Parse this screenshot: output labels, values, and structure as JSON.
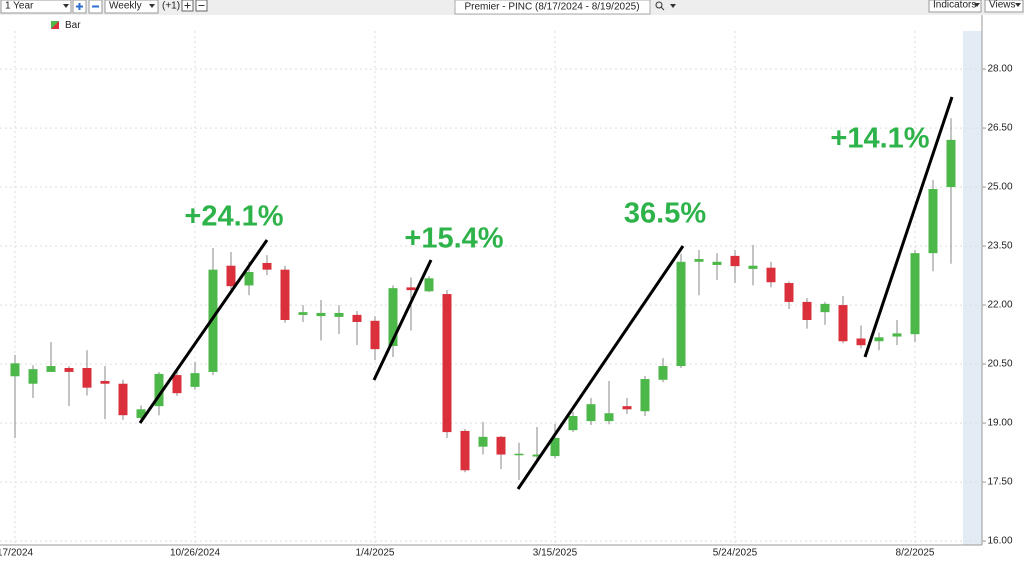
{
  "toolbar": {
    "range": "1 Year",
    "interval": "Weekly",
    "offset": "(+1)",
    "indicators": "Indicators",
    "views": "Views"
  },
  "chart_data": {
    "type": "candlestick",
    "title": "Premier - PINC (8/17/2024 - 8/19/2025)",
    "categories": [
      "17/2024",
      null,
      null,
      null,
      null,
      null,
      null,
      null,
      null,
      null,
      "10/26/2024",
      null,
      null,
      null,
      null,
      null,
      null,
      null,
      null,
      null,
      "1/4/2025",
      null,
      null,
      null,
      null,
      null,
      null,
      null,
      null,
      null,
      "3/15/2025",
      null,
      null,
      null,
      null,
      null,
      null,
      null,
      null,
      null,
      "5/24/2025",
      null,
      null,
      null,
      null,
      null,
      null,
      null,
      null,
      null,
      "8/2/2025",
      null,
      null
    ],
    "series": [
      {
        "name": "Bar",
        "up_color": "#4cb849",
        "down_color": "#d9303b",
        "open": [
          20.19,
          20.0,
          20.3,
          20.4,
          20.4,
          20.07,
          20.0,
          19.13,
          19.43,
          20.22,
          19.92,
          20.3,
          23.0,
          22.5,
          23.07,
          22.9,
          21.75,
          21.72,
          21.7,
          21.75,
          21.6,
          20.96,
          22.45,
          22.35,
          22.28,
          18.8,
          18.4,
          18.65,
          18.2,
          18.15,
          18.16,
          18.82,
          19.05,
          19.05,
          19.43,
          19.3,
          20.1,
          20.45,
          23.1,
          23.02,
          23.25,
          22.92,
          22.95,
          22.56,
          22.08,
          21.82,
          22.0,
          21.15,
          21.08,
          21.2,
          21.26,
          23.32,
          25.0
        ],
        "high": [
          20.73,
          20.47,
          21.06,
          20.45,
          20.85,
          20.45,
          20.1,
          19.45,
          20.3,
          20.37,
          20.55,
          23.45,
          23.35,
          23.1,
          23.27,
          23.0,
          22.0,
          22.13,
          22.0,
          21.85,
          21.72,
          22.5,
          22.7,
          22.74,
          22.38,
          18.85,
          19.03,
          18.67,
          18.5,
          18.9,
          18.98,
          19.28,
          19.64,
          20.07,
          19.64,
          20.2,
          20.65,
          23.3,
          23.4,
          23.32,
          23.4,
          23.53,
          23.1,
          22.6,
          22.18,
          22.08,
          22.23,
          21.48,
          21.3,
          21.62,
          23.4,
          25.18,
          26.75
        ],
        "low": [
          18.62,
          19.64,
          20.3,
          19.43,
          19.7,
          19.1,
          19.08,
          19.05,
          19.2,
          19.69,
          19.85,
          20.22,
          22.4,
          22.25,
          22.76,
          21.55,
          21.57,
          21.1,
          21.26,
          20.98,
          20.6,
          20.68,
          21.35,
          22.33,
          18.62,
          17.75,
          18.2,
          17.83,
          17.55,
          18.0,
          18.1,
          18.77,
          18.95,
          18.97,
          19.23,
          19.18,
          20.04,
          20.4,
          22.25,
          22.64,
          22.56,
          22.5,
          22.45,
          21.9,
          21.4,
          21.5,
          21.03,
          20.9,
          20.85,
          20.98,
          21.06,
          22.86,
          23.05
        ],
        "close": [
          20.52,
          20.37,
          20.45,
          20.3,
          19.9,
          20.0,
          19.2,
          19.35,
          20.25,
          19.76,
          20.27,
          22.9,
          22.48,
          22.84,
          22.9,
          21.62,
          21.82,
          21.8,
          21.8,
          21.57,
          20.88,
          22.43,
          22.38,
          22.68,
          18.77,
          17.8,
          18.65,
          18.2,
          18.22,
          18.2,
          18.62,
          19.18,
          19.48,
          19.25,
          19.35,
          20.12,
          20.45,
          23.1,
          23.17,
          23.1,
          22.99,
          23.0,
          22.58,
          22.08,
          21.62,
          22.03,
          21.08,
          20.98,
          21.18,
          21.28,
          23.32,
          24.95,
          26.2
        ]
      }
    ],
    "ylim": [
      15.9,
      29.4
    ],
    "yticks": [
      {
        "value": 16,
        "label": "16.00"
      },
      {
        "value": 17.5,
        "label": "17.50"
      },
      {
        "value": 19,
        "label": "19.00"
      },
      {
        "value": 20.5,
        "label": "20.50"
      },
      {
        "value": 22,
        "label": "22.00"
      },
      {
        "value": 23.5,
        "label": "23.50"
      },
      {
        "value": 25,
        "label": "25.00"
      },
      {
        "value": 26.5,
        "label": "26.50"
      },
      {
        "value": 28,
        "label": "28.00"
      }
    ],
    "grid": true,
    "annotations": [
      "+24.1%",
      "+15.4%",
      "36.5%",
      "+14.1%"
    ],
    "annotation_color": "#2db34a"
  }
}
